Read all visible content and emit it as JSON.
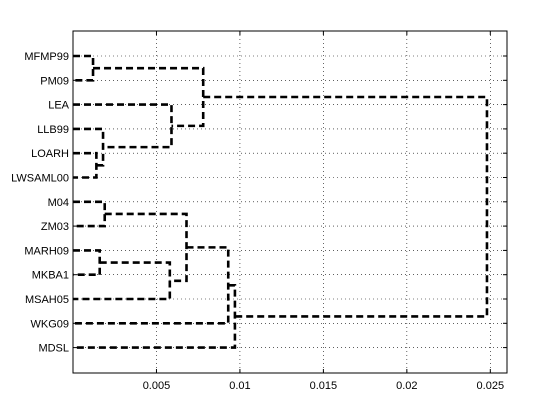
{
  "chart_data": {
    "type": "dendrogram",
    "title": "",
    "xlabel": "",
    "ylabel": "",
    "orientation": "horizontal",
    "xlim": [
      0,
      0.026
    ],
    "x_ticks": [
      0.005,
      0.01,
      0.015,
      0.02,
      0.025
    ],
    "x_tick_labels": [
      "0.005",
      "0.01",
      "0.015",
      "0.02",
      "0.025"
    ],
    "grid": true,
    "line_style": "dashed",
    "line_color": "#000000",
    "leaves": [
      "MFMP99",
      "PM09",
      "LEA",
      "LLB99",
      "LOARH",
      "LWSAML00",
      "M04",
      "ZM03",
      "MARH09",
      "MKBA1",
      "MSAH05",
      "WKG09",
      "MDSL"
    ],
    "merges": [
      {
        "a": "MFMP99",
        "b": "PM09",
        "height": 0.0012
      },
      {
        "a": "LOARH",
        "b": "LWSAML00",
        "height": 0.0014
      },
      {
        "a": "LLB99",
        "b": "LOARH+LWSAML00",
        "height": 0.0018
      },
      {
        "a": "LEA",
        "b": "LLB99+LOARH+LWSAML00",
        "height": 0.0059
      },
      {
        "a": "MFMP99+PM09",
        "b": "LEA+LLB99+LOARH+LWSAML00",
        "height": 0.0078
      },
      {
        "a": "M04",
        "b": "ZM03",
        "height": 0.0019
      },
      {
        "a": "MARH09",
        "b": "MKBA1",
        "height": 0.0016
      },
      {
        "a": "MARH09+MKBA1",
        "b": "MSAH05",
        "height": 0.0058
      },
      {
        "a": "M04+ZM03",
        "b": "MARH09+MKBA1+MSAH05",
        "height": 0.0068
      },
      {
        "a": "M04+ZM03+MARH09+MKBA1+MSAH05",
        "b": "WKG09",
        "height": 0.0093
      },
      {
        "a": "M04+ZM03+MARH09+MKBA1+MSAH05+WKG09",
        "b": "MDSL",
        "height": 0.0097
      },
      {
        "a": "MFMP99+PM09+LEA+LLB99+LOARH+LWSAML00",
        "b": "M04+ZM03+MARH09+MKBA1+MSAH05+WKG09+MDSL",
        "height": 0.0248
      }
    ]
  }
}
